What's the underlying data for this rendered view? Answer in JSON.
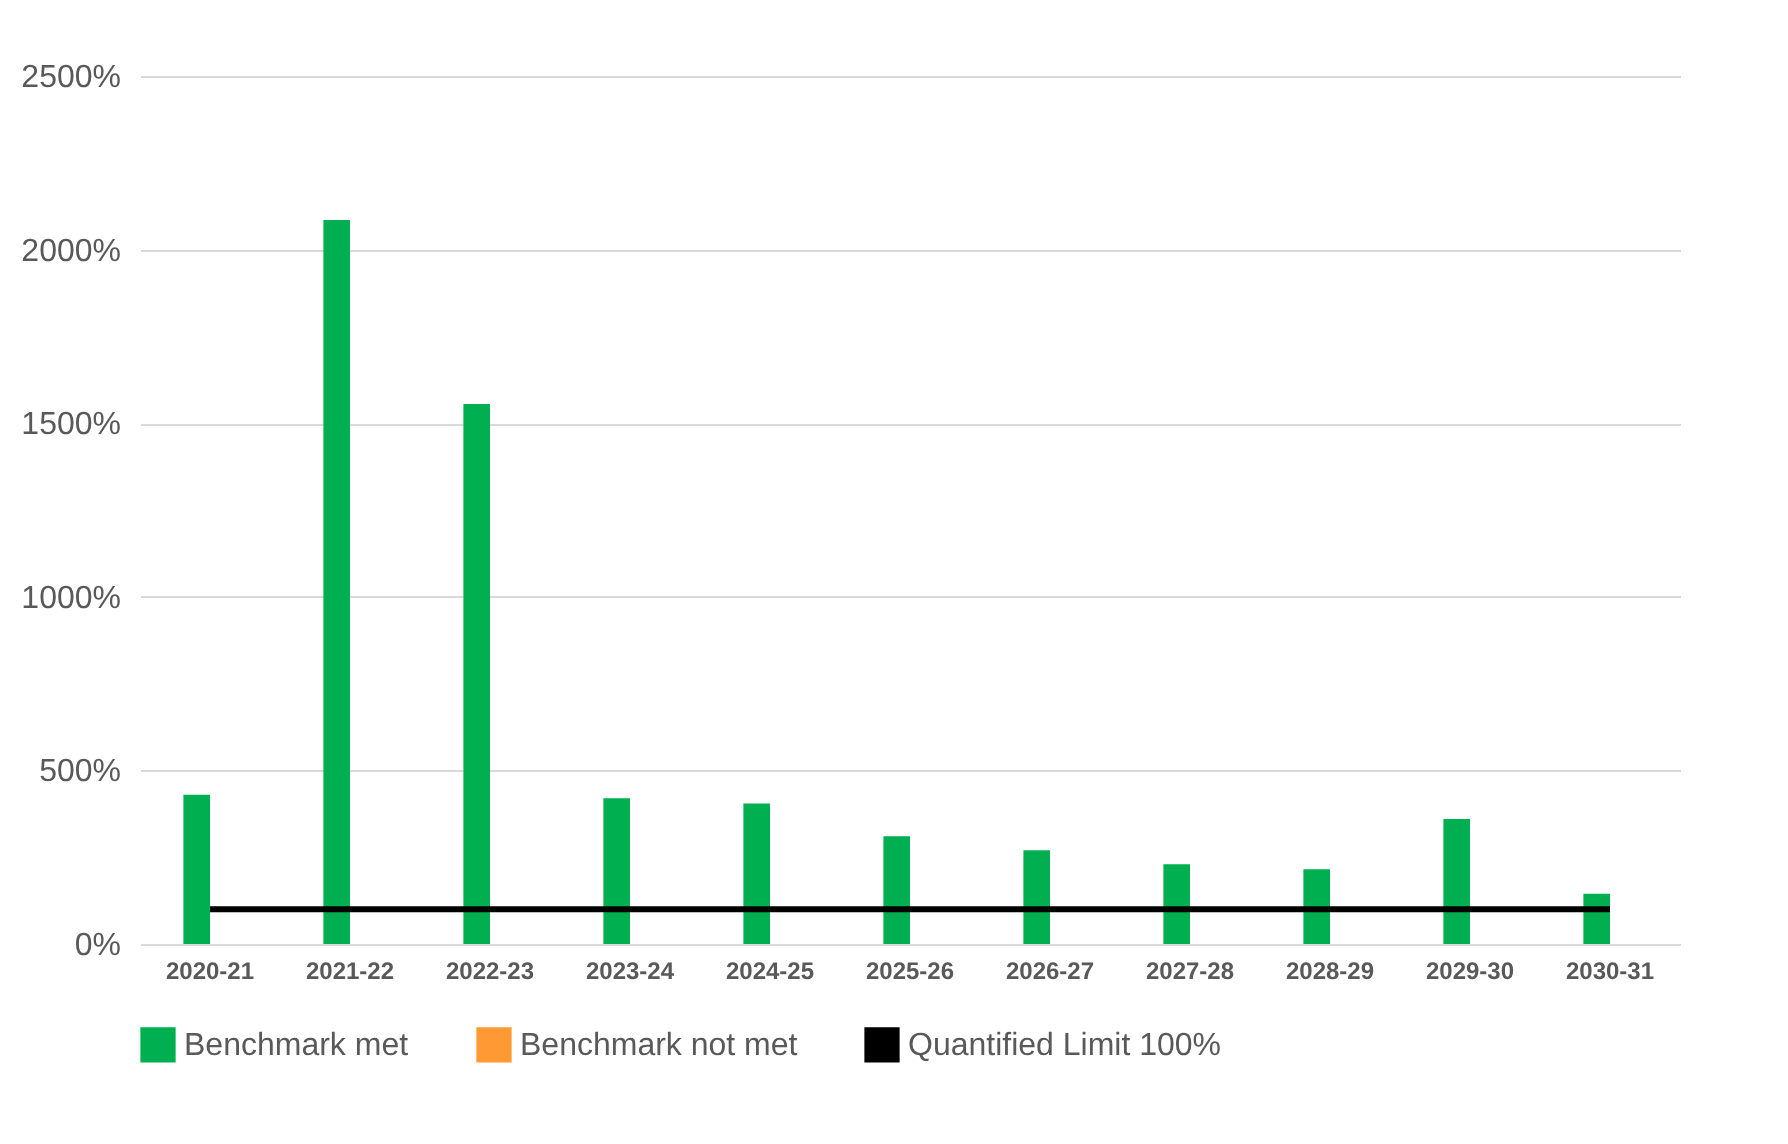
{
  "chart_data": {
    "type": "bar",
    "categories": [
      "2020-21",
      "2021-22",
      "2022-23",
      "2023-24",
      "2024-25",
      "2025-26",
      "2026-27",
      "2027-28",
      "2028-29",
      "2029-30",
      "2030-31"
    ],
    "series": [
      {
        "name": "Benchmark met",
        "color": "#00b050",
        "values": [
          430,
          2085,
          1555,
          420,
          405,
          310,
          270,
          230,
          215,
          360,
          145
        ]
      },
      {
        "name": "Benchmark not met",
        "color": "#ff9933",
        "values": [
          null,
          null,
          null,
          null,
          null,
          null,
          null,
          null,
          null,
          null,
          null
        ]
      }
    ],
    "ylim": [
      0,
      2500
    ],
    "yticks": [
      {
        "value": 0,
        "label": "0%"
      },
      {
        "value": 500,
        "label": "500%"
      },
      {
        "value": 1000,
        "label": "1000%"
      },
      {
        "value": 1500,
        "label": "1500%"
      },
      {
        "value": 2000,
        "label": "2000%"
      },
      {
        "value": 2500,
        "label": "2500%"
      }
    ],
    "ref_lines": [
      {
        "axis": "y",
        "value": 100,
        "label": "Quantified Limit 100%",
        "color": "#000000"
      }
    ],
    "grid": "y",
    "legend": "bottom"
  }
}
